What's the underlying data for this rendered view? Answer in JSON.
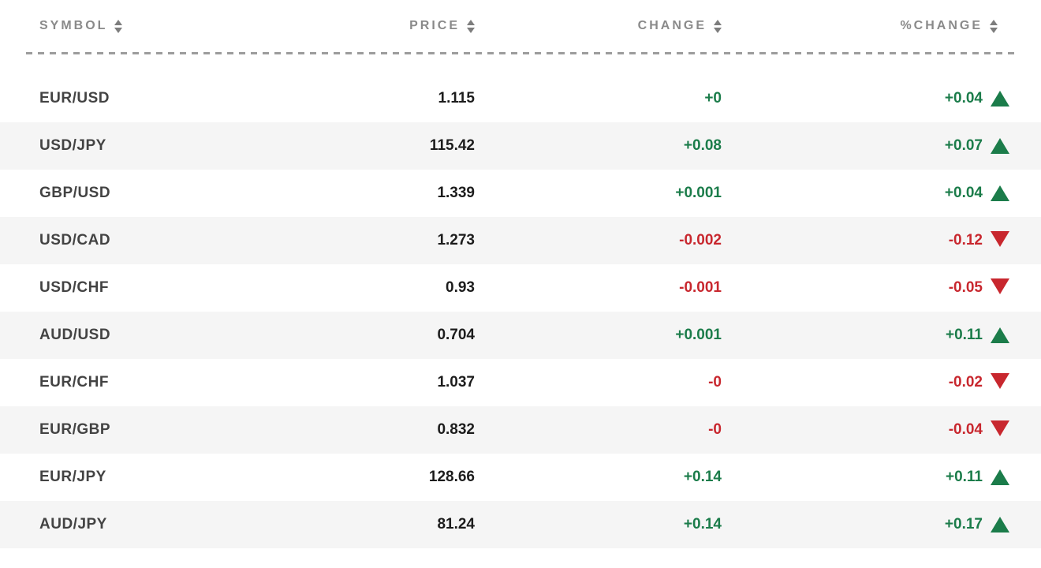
{
  "table": {
    "columns": [
      {
        "key": "symbol",
        "label": "SYMBOL",
        "sortable": true
      },
      {
        "key": "price",
        "label": "PRICE",
        "sortable": true
      },
      {
        "key": "change",
        "label": "CHANGE",
        "sortable": true
      },
      {
        "key": "pct_change",
        "label": "%CHANGE",
        "sortable": true
      }
    ],
    "rows": [
      {
        "symbol": "EUR/USD",
        "price": "1.115",
        "change": "+0",
        "pct_change": "+0.04",
        "direction": "up"
      },
      {
        "symbol": "USD/JPY",
        "price": "115.42",
        "change": "+0.08",
        "pct_change": "+0.07",
        "direction": "up"
      },
      {
        "symbol": "GBP/USD",
        "price": "1.339",
        "change": "+0.001",
        "pct_change": "+0.04",
        "direction": "up"
      },
      {
        "symbol": "USD/CAD",
        "price": "1.273",
        "change": "-0.002",
        "pct_change": "-0.12",
        "direction": "down"
      },
      {
        "symbol": "USD/CHF",
        "price": "0.93",
        "change": "-0.001",
        "pct_change": "-0.05",
        "direction": "down"
      },
      {
        "symbol": "AUD/USD",
        "price": "0.704",
        "change": "+0.001",
        "pct_change": "+0.11",
        "direction": "up"
      },
      {
        "symbol": "EUR/CHF",
        "price": "1.037",
        "change": "-0",
        "pct_change": "-0.02",
        "direction": "down"
      },
      {
        "symbol": "EUR/GBP",
        "price": "0.832",
        "change": "-0",
        "pct_change": "-0.04",
        "direction": "down"
      },
      {
        "symbol": "EUR/JPY",
        "price": "128.66",
        "change": "+0.14",
        "pct_change": "+0.11",
        "direction": "up"
      },
      {
        "symbol": "AUD/JPY",
        "price": "81.24",
        "change": "+0.14",
        "pct_change": "+0.17",
        "direction": "up"
      }
    ],
    "colors": {
      "positive": "#1b7c4a",
      "negative": "#c8272e",
      "header_text": "#8a8a8a",
      "sort_arrow": "#7d7d7d",
      "symbol_text": "#434343",
      "price_text": "#1c1c1c",
      "row_alt_bg": "#f5f5f5",
      "divider": "#9c9c9c"
    }
  }
}
